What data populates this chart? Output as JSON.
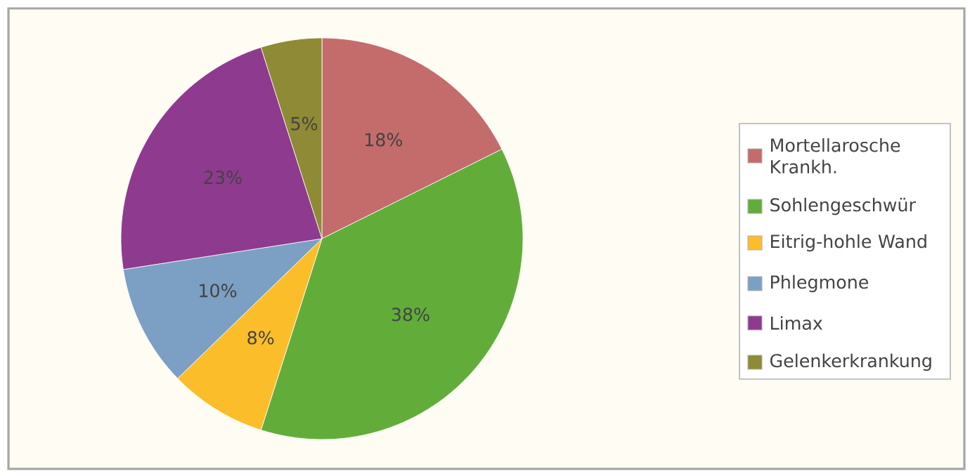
{
  "chart_data": {
    "type": "pie",
    "categories": [
      "Mortellarosche Krankh.",
      "Sohlengeschwür",
      "Eitrig-hohle Wand",
      "Phlegmone",
      "Limax",
      "Gelenkerkrankung"
    ],
    "values": [
      18,
      38,
      8,
      10,
      23,
      5
    ],
    "colors": [
      "#c46c6c",
      "#62ad3a",
      "#fbbd2a",
      "#7c9fc4",
      "#8e3a8e",
      "#8f8a35"
    ],
    "value_labels": [
      "18%",
      "38%",
      "8%",
      "10%",
      "23%",
      "5%"
    ],
    "legend": "right"
  }
}
